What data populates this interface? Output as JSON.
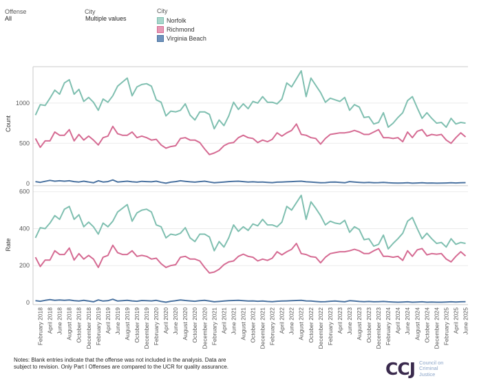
{
  "filters": {
    "offense": {
      "label": "Offense",
      "value": "All"
    },
    "city": {
      "label": "City",
      "value": "Multiple values"
    }
  },
  "legend": {
    "title": "City",
    "items": [
      {
        "name": "Norfolk",
        "color": "#7fbfb0"
      },
      {
        "name": "Richmond",
        "color": "#d56a92"
      },
      {
        "name": "Virginia Beach",
        "color": "#4a72a0"
      }
    ]
  },
  "notes": "Notes: Blank entries indicate that the offense was not included in the analysis. Data are subject to revision. Only Part I Offenses are compared to the UCR for quality assurance.",
  "logo": {
    "mark": "CCJ",
    "lines": [
      "Council on",
      "Criminal",
      "Justice"
    ]
  },
  "chart_data": [
    {
      "type": "line",
      "ylabel": "Count",
      "ylim": [
        0,
        1400
      ],
      "yticks": [
        0,
        500,
        1000
      ],
      "x_start": "2018-01",
      "x_end": "2025-06",
      "series": [
        {
          "name": "Norfolk",
          "color": "#7fbfb0",
          "values": [
            850,
            980,
            970,
            1060,
            1160,
            1110,
            1250,
            1290,
            1110,
            1170,
            1020,
            1070,
            1010,
            910,
            1050,
            1010,
            1090,
            1210,
            1260,
            1310,
            1090,
            1200,
            1230,
            1240,
            1210,
            1040,
            1010,
            840,
            900,
            890,
            910,
            990,
            850,
            790,
            890,
            890,
            860,
            680,
            790,
            720,
            840,
            1010,
            920,
            990,
            930,
            1020,
            1000,
            1080,
            1010,
            1010,
            990,
            1050,
            1250,
            1200,
            1300,
            1400,
            1080,
            1310,
            1220,
            1130,
            1010,
            1060,
            1040,
            1020,
            1070,
            910,
            980,
            950,
            820,
            830,
            740,
            760,
            880,
            700,
            750,
            820,
            880,
            1030,
            1080,
            940,
            810,
            880,
            810,
            750,
            760,
            700,
            810,
            740,
            760,
            750
          ]
        },
        {
          "name": "Richmond",
          "color": "#d56a92",
          "values": [
            560,
            450,
            530,
            530,
            640,
            600,
            600,
            670,
            530,
            610,
            540,
            590,
            540,
            480,
            570,
            590,
            710,
            620,
            600,
            600,
            640,
            570,
            590,
            570,
            540,
            550,
            480,
            440,
            460,
            470,
            560,
            570,
            540,
            540,
            510,
            430,
            360,
            380,
            410,
            470,
            500,
            510,
            570,
            600,
            570,
            560,
            510,
            540,
            520,
            550,
            630,
            590,
            630,
            660,
            740,
            610,
            600,
            570,
            560,
            490,
            560,
            610,
            620,
            630,
            630,
            640,
            660,
            640,
            610,
            610,
            640,
            670,
            570,
            570,
            560,
            570,
            520,
            640,
            570,
            650,
            670,
            590,
            610,
            600,
            610,
            540,
            500,
            570,
            630,
            580
          ]
        },
        {
          "name": "Virginia Beach",
          "color": "#4a72a0",
          "values": [
            25,
            15,
            28,
            40,
            30,
            35,
            30,
            35,
            25,
            20,
            30,
            20,
            10,
            35,
            20,
            25,
            45,
            20,
            25,
            30,
            22,
            18,
            28,
            25,
            22,
            30,
            15,
            5,
            18,
            25,
            35,
            28,
            22,
            18,
            25,
            30,
            20,
            10,
            15,
            20,
            25,
            28,
            30,
            25,
            20,
            22,
            18,
            20,
            15,
            12,
            18,
            20,
            22,
            25,
            28,
            30,
            22,
            20,
            15,
            10,
            12,
            18,
            20,
            15,
            10,
            25,
            20,
            15,
            12,
            15,
            10,
            12,
            15,
            10,
            8,
            6,
            8,
            10,
            5,
            8,
            10,
            6,
            8,
            5,
            6,
            8,
            10,
            8,
            10,
            12
          ]
        }
      ]
    },
    {
      "type": "line",
      "ylabel": "Rate",
      "ylim": [
        0,
        610
      ],
      "yticks": [
        0,
        200,
        400,
        600
      ],
      "x_start": "2018-01",
      "x_end": "2025-06",
      "xtick_labels": [
        "February 2018",
        "April 2018",
        "June 2018",
        "August 2018",
        "October 2018",
        "December 2018",
        "February 2019",
        "April 2019",
        "June 2019",
        "August 2019",
        "October 2019",
        "December 2019",
        "February 2020",
        "April 2020",
        "June 2020",
        "August 2020",
        "October 2020",
        "December 2020",
        "February 2021",
        "April 2021",
        "June 2021",
        "August 2021",
        "October 2021",
        "December 2021",
        "February 2022",
        "April 2022",
        "June 2022",
        "August 2022",
        "October 2022",
        "December 2022",
        "February 2023",
        "April 2023",
        "June 2023",
        "August 2023",
        "October 2023",
        "December 2023",
        "February 2024",
        "April 2024",
        "June 2024",
        "August 2024",
        "October 2024",
        "December 2024",
        "February 2025",
        "April 2025",
        "June 2025"
      ],
      "series": [
        {
          "name": "Norfolk",
          "color": "#7fbfb0",
          "values": [
            350,
            405,
            400,
            430,
            470,
            450,
            505,
            520,
            450,
            475,
            410,
            435,
            410,
            370,
            430,
            410,
            440,
            490,
            510,
            530,
            440,
            485,
            500,
            505,
            490,
            420,
            410,
            350,
            370,
            365,
            375,
            405,
            350,
            330,
            370,
            370,
            355,
            280,
            330,
            300,
            350,
            420,
            385,
            410,
            390,
            425,
            415,
            450,
            420,
            420,
            410,
            435,
            520,
            500,
            540,
            580,
            450,
            545,
            510,
            470,
            420,
            440,
            430,
            425,
            445,
            380,
            410,
            395,
            340,
            345,
            305,
            315,
            365,
            290,
            320,
            345,
            375,
            440,
            460,
            400,
            345,
            375,
            345,
            320,
            325,
            300,
            345,
            315,
            325,
            320
          ]
        },
        {
          "name": "Richmond",
          "color": "#d56a92",
          "values": [
            245,
            195,
            230,
            230,
            280,
            260,
            260,
            295,
            230,
            265,
            235,
            255,
            235,
            190,
            245,
            255,
            310,
            270,
            260,
            260,
            280,
            250,
            255,
            250,
            235,
            240,
            210,
            190,
            200,
            205,
            245,
            250,
            235,
            235,
            225,
            190,
            160,
            165,
            180,
            205,
            220,
            225,
            250,
            262,
            250,
            245,
            225,
            235,
            228,
            240,
            275,
            258,
            275,
            288,
            320,
            265,
            260,
            248,
            245,
            215,
            245,
            265,
            270,
            275,
            275,
            280,
            288,
            280,
            265,
            265,
            280,
            292,
            250,
            250,
            245,
            250,
            228,
            280,
            250,
            285,
            292,
            258,
            265,
            262,
            265,
            235,
            220,
            250,
            275,
            252
          ]
        },
        {
          "name": "Virginia Beach",
          "color": "#4a72a0",
          "values": [
            10,
            7,
            12,
            16,
            12,
            14,
            12,
            14,
            10,
            8,
            12,
            8,
            4,
            14,
            8,
            10,
            18,
            8,
            10,
            12,
            9,
            7,
            11,
            10,
            9,
            12,
            6,
            2,
            7,
            10,
            14,
            11,
            9,
            7,
            10,
            12,
            8,
            4,
            6,
            8,
            10,
            11,
            12,
            10,
            8,
            9,
            7,
            8,
            6,
            5,
            7,
            8,
            9,
            10,
            11,
            12,
            9,
            8,
            6,
            4,
            5,
            7,
            8,
            6,
            4,
            10,
            8,
            6,
            5,
            6,
            4,
            5,
            6,
            4,
            3,
            2,
            3,
            4,
            2,
            3,
            4,
            2,
            3,
            2,
            2,
            3,
            4,
            3,
            4,
            5
          ]
        }
      ]
    }
  ]
}
